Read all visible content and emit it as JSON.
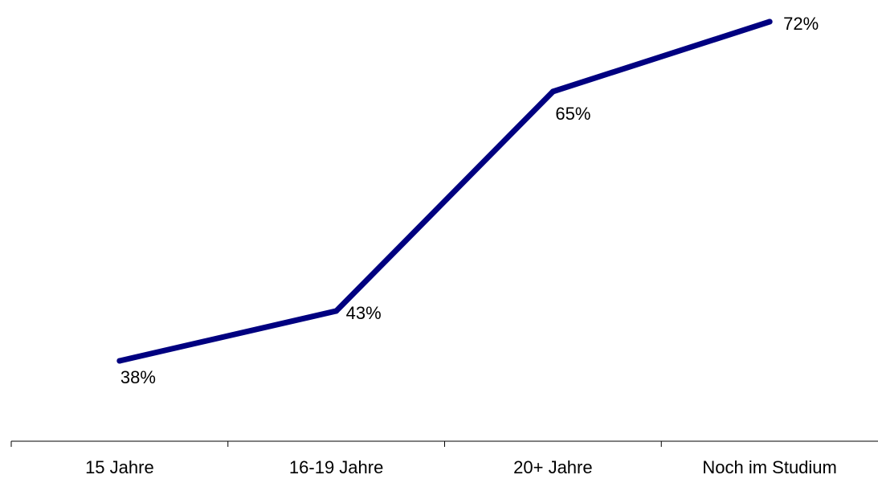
{
  "chart_data": {
    "type": "line",
    "categories": [
      "15 Jahre",
      "16-19 Jahre",
      "20+ Jahre",
      "Noch im Studium"
    ],
    "series": [
      {
        "values": [
          38,
          43,
          65,
          72
        ],
        "labels": [
          "38%",
          "43%",
          "65%",
          "72%"
        ],
        "color": "#000080"
      }
    ],
    "title": "",
    "xlabel": "",
    "ylabel": "",
    "ylim": [
      33,
      74
    ],
    "grid": false,
    "legend": "none"
  }
}
